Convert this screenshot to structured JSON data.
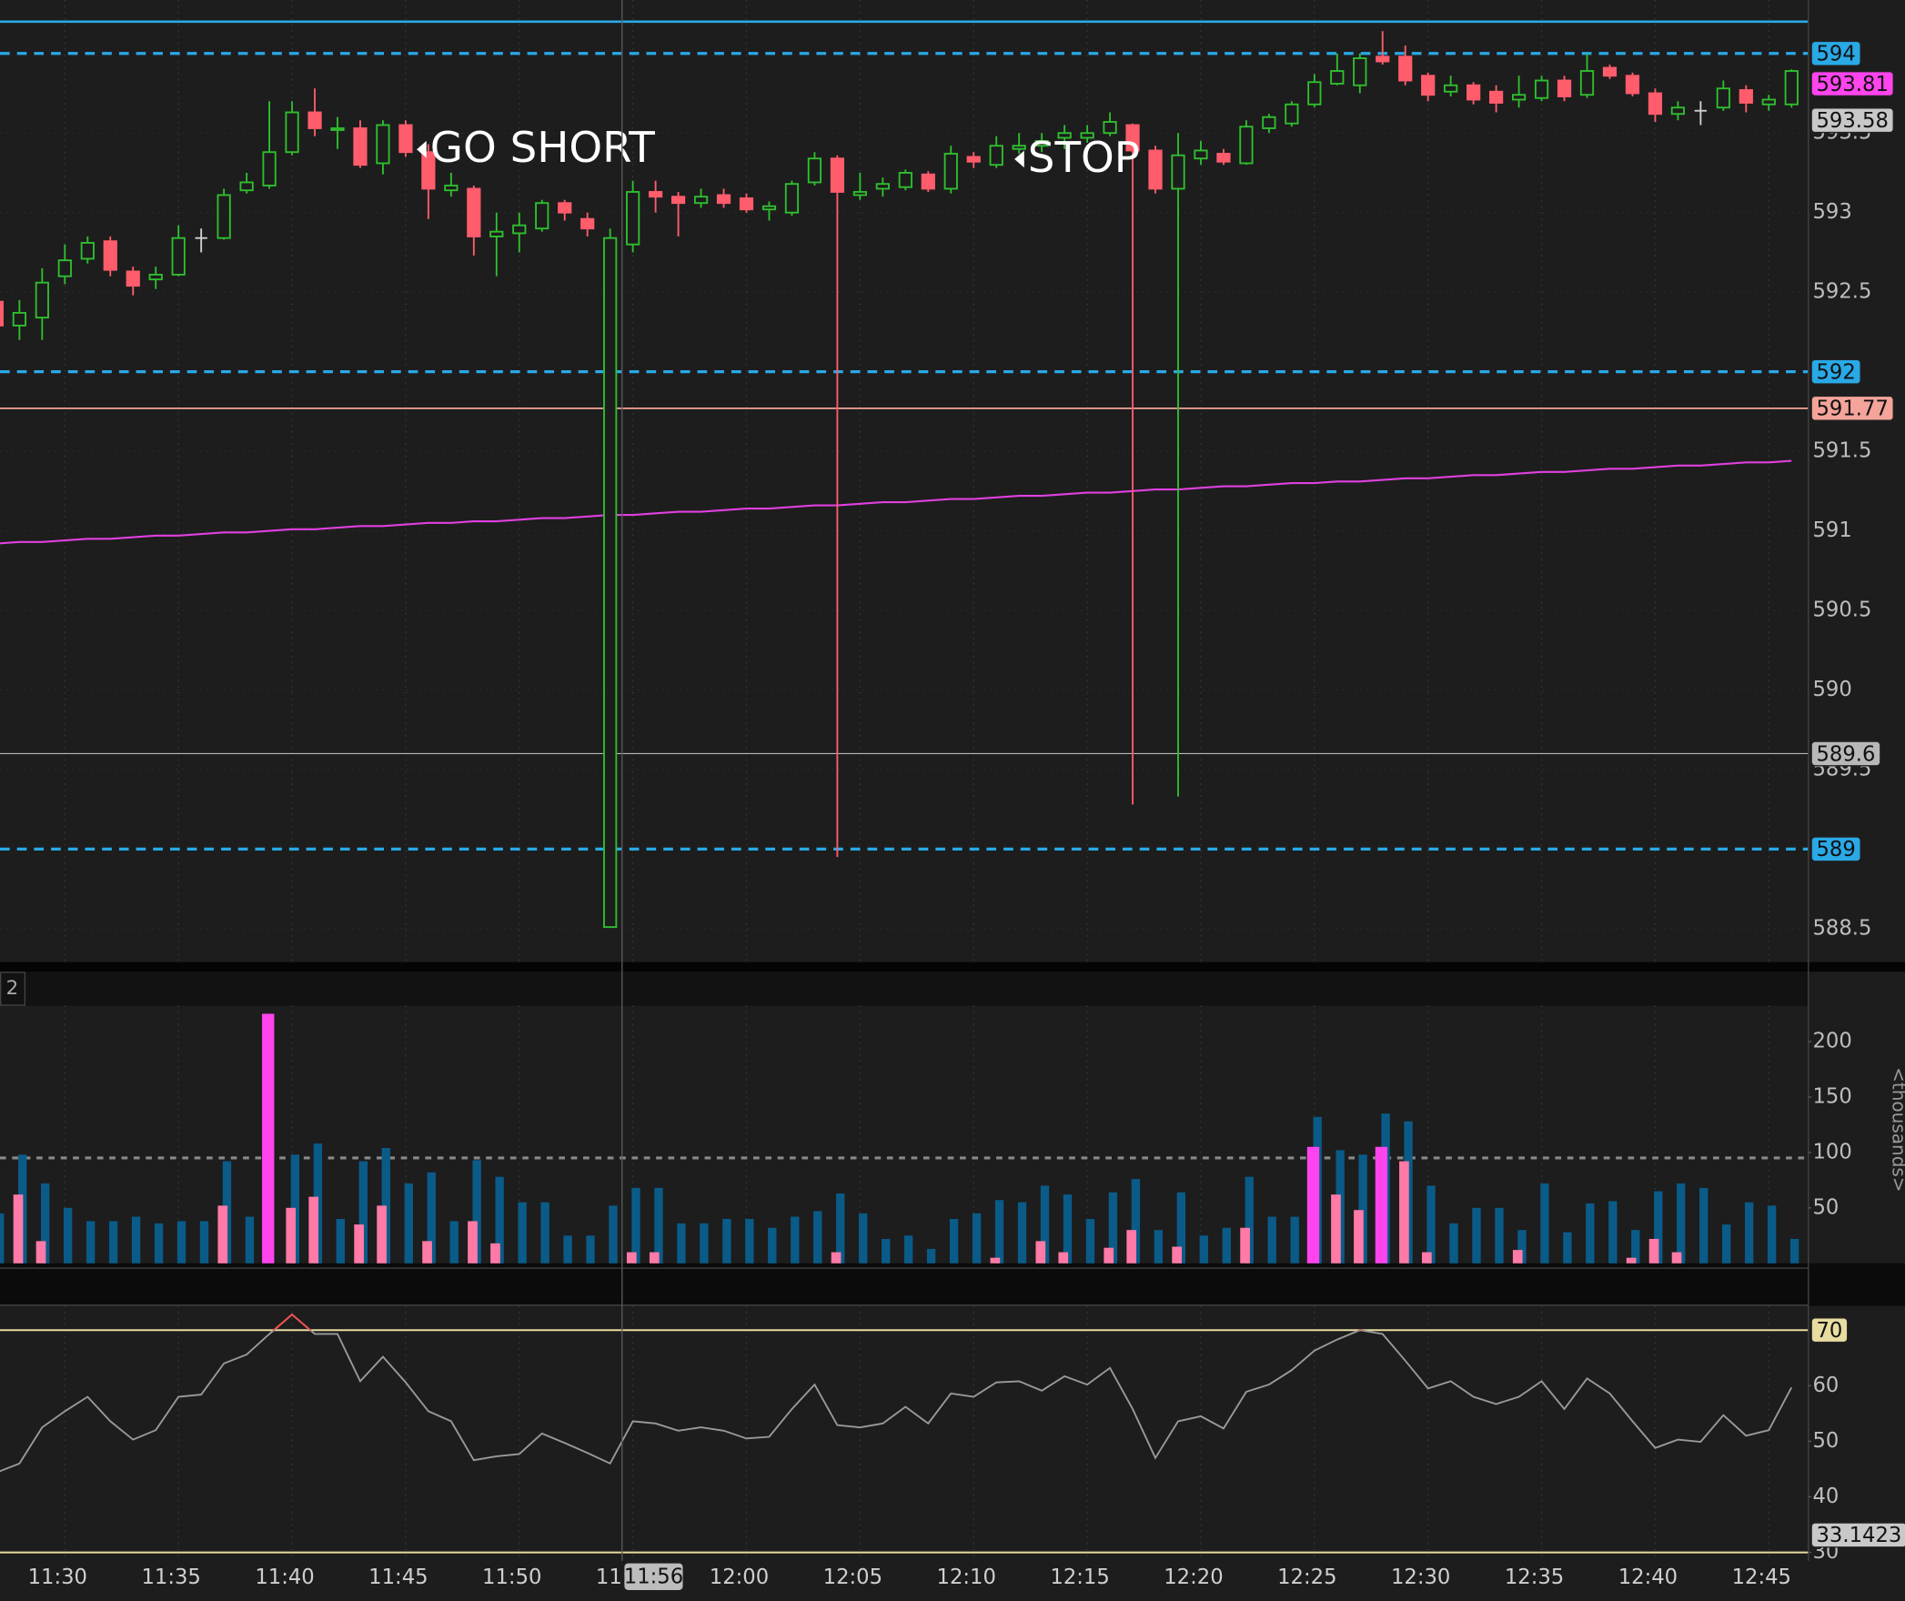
{
  "chart_data": [
    {
      "type": "candlestick",
      "categories": [
        null,
        null,
        null,
        "11:30",
        null,
        null,
        null,
        null,
        "11:35",
        null,
        null,
        null,
        null,
        "11:40",
        null,
        null,
        null,
        null,
        "11:45",
        null,
        null,
        null,
        null,
        "11:50",
        null,
        null,
        null,
        null,
        "11:55",
        null,
        null,
        null,
        null,
        "12:00",
        null,
        null,
        null,
        null,
        "12:05",
        null,
        null,
        null,
        null,
        "12:10",
        null,
        null,
        null,
        null,
        "12:15",
        null,
        null,
        null,
        null,
        "12:20",
        null,
        null,
        null,
        null,
        "12:25",
        null,
        null,
        null,
        null,
        "12:30",
        null,
        null,
        null,
        null,
        "12:35",
        null,
        null,
        null,
        null,
        "12:40",
        null,
        null,
        null,
        null,
        "12:45",
        null
      ],
      "open": [
        592.44,
        592.29,
        592.34,
        592.6,
        592.71,
        592.82,
        592.63,
        592.58,
        592.61,
        592.84,
        592.84,
        593.14,
        593.17,
        593.38,
        593.63,
        593.52,
        593.53,
        593.31,
        593.55,
        593.38,
        593.14,
        593.15,
        592.85,
        592.87,
        592.9,
        593.06,
        592.96,
        588.51,
        592.8,
        593.13,
        593.1,
        593.06,
        593.11,
        593.09,
        593.02,
        593.0,
        593.19,
        593.34,
        593.11,
        593.15,
        593.16,
        593.24,
        593.15,
        593.35,
        593.3,
        593.4,
        593.42,
        593.47,
        593.47,
        593.5,
        593.55,
        593.39,
        593.15,
        593.34,
        593.37,
        593.31,
        593.53,
        593.56,
        593.68,
        593.81,
        593.8,
        593.98,
        593.98,
        593.86,
        593.76,
        593.8,
        593.76,
        593.71,
        593.72,
        593.83,
        593.74,
        593.91,
        593.86,
        593.75,
        593.62,
        593.64,
        593.66,
        593.77,
        593.68,
        593.68
      ],
      "high": [
        592.5,
        592.45,
        592.65,
        592.8,
        592.85,
        592.85,
        592.66,
        592.66,
        592.92,
        592.9,
        593.15,
        593.25,
        593.7,
        593.7,
        593.78,
        593.6,
        593.58,
        593.58,
        593.58,
        593.43,
        593.25,
        593.17,
        593.0,
        593.0,
        593.08,
        593.08,
        593.0,
        592.9,
        593.2,
        593.2,
        593.13,
        593.15,
        593.15,
        593.12,
        593.07,
        593.2,
        593.38,
        593.36,
        593.25,
        593.22,
        593.27,
        593.26,
        593.42,
        593.38,
        593.48,
        593.5,
        593.5,
        593.55,
        593.55,
        593.63,
        593.56,
        593.42,
        593.5,
        593.45,
        593.4,
        593.58,
        593.62,
        593.7,
        593.87,
        594.0,
        594.0,
        594.14,
        594.05,
        593.88,
        593.86,
        593.82,
        593.8,
        593.86,
        593.86,
        593.86,
        594.0,
        593.93,
        593.88,
        593.78,
        593.7,
        593.7,
        593.83,
        593.8,
        593.74,
        593.9
      ],
      "low": [
        592.25,
        592.2,
        592.2,
        592.55,
        592.68,
        592.6,
        592.48,
        592.52,
        592.6,
        592.75,
        592.83,
        593.12,
        593.15,
        593.36,
        593.48,
        593.4,
        593.28,
        593.24,
        593.35,
        592.96,
        593.1,
        592.73,
        592.6,
        592.75,
        592.88,
        592.95,
        592.85,
        588.51,
        592.75,
        593.0,
        592.85,
        593.03,
        593.03,
        593.0,
        592.95,
        592.98,
        593.17,
        588.95,
        593.08,
        593.1,
        593.14,
        593.13,
        593.12,
        593.28,
        593.28,
        593.37,
        593.38,
        593.4,
        593.44,
        593.48,
        589.28,
        593.12,
        589.33,
        593.3,
        593.3,
        593.3,
        593.5,
        593.54,
        593.66,
        593.8,
        593.75,
        593.93,
        593.8,
        593.7,
        593.73,
        593.68,
        593.63,
        593.66,
        593.7,
        593.7,
        593.72,
        593.84,
        593.73,
        593.57,
        593.58,
        593.55,
        593.64,
        593.63,
        593.64,
        593.66
      ],
      "close": [
        592.29,
        592.37,
        592.56,
        592.7,
        592.81,
        592.64,
        592.54,
        592.61,
        592.84,
        592.84,
        593.11,
        593.19,
        593.38,
        593.63,
        593.53,
        593.53,
        593.3,
        593.55,
        593.38,
        593.15,
        593.17,
        592.85,
        592.88,
        592.92,
        593.06,
        593.0,
        592.9,
        592.84,
        593.13,
        593.1,
        593.06,
        593.1,
        593.06,
        593.02,
        593.04,
        593.18,
        593.34,
        593.13,
        593.13,
        593.18,
        593.25,
        593.15,
        593.37,
        593.32,
        593.42,
        593.42,
        593.45,
        593.5,
        593.5,
        593.57,
        593.39,
        593.15,
        593.36,
        593.39,
        593.32,
        593.54,
        593.6,
        593.68,
        593.82,
        593.89,
        593.97,
        593.95,
        593.83,
        593.74,
        593.8,
        593.71,
        593.69,
        593.74,
        593.83,
        593.73,
        593.89,
        593.86,
        593.75,
        593.62,
        593.66,
        593.64,
        593.78,
        593.69,
        593.71,
        593.89
      ],
      "up_color": "#2fbf2f",
      "down_color": "#ff5c6c",
      "doji_color": "#d0d0d0",
      "overlay": {
        "color": "#e040e0",
        "values": [
          590.92,
          590.93,
          590.93,
          590.94,
          590.95,
          590.95,
          590.96,
          590.97,
          590.97,
          590.98,
          590.99,
          590.99,
          591.0,
          591.01,
          591.01,
          591.02,
          591.03,
          591.03,
          591.04,
          591.05,
          591.05,
          591.06,
          591.06,
          591.07,
          591.08,
          591.08,
          591.09,
          591.1,
          591.1,
          591.11,
          591.12,
          591.12,
          591.13,
          591.14,
          591.14,
          591.15,
          591.16,
          591.16,
          591.17,
          591.18,
          591.18,
          591.19,
          591.2,
          591.2,
          591.21,
          591.22,
          591.22,
          591.23,
          591.24,
          591.24,
          591.25,
          591.26,
          591.26,
          591.27,
          591.28,
          591.28,
          591.29,
          591.3,
          591.3,
          591.31,
          591.31,
          591.32,
          591.33,
          591.33,
          591.34,
          591.35,
          591.35,
          591.36,
          591.37,
          591.37,
          591.38,
          591.39,
          591.39,
          591.4,
          591.41,
          591.41,
          591.42,
          591.43,
          591.43,
          591.44
        ]
      },
      "ylim": [
        588.29,
        594.336
      ],
      "yticks": [
        588.5,
        589.5,
        590,
        590.5,
        591,
        591.5,
        592.5,
        593,
        593.5
      ],
      "grid": true,
      "levels": [
        {
          "value": 594.2,
          "color": "#29a9e6",
          "line": "solid"
        },
        {
          "value": 594,
          "color": "#29a9e6",
          "line": "dashed",
          "marker": true
        },
        {
          "value": 592,
          "color": "#29a9e6",
          "line": "dashed",
          "marker": true
        },
        {
          "value": 589,
          "color": "#29a9e6",
          "line": "dashed",
          "marker": true
        },
        {
          "value": 591.77,
          "color": "#f4a49a",
          "line": "solid",
          "marker": true
        },
        {
          "value": 589.6,
          "color": "#b8b8b8",
          "line": "thin",
          "marker": true
        },
        {
          "value": 593.81,
          "color": "#ff44ee",
          "marker": true
        },
        {
          "value": 593.58,
          "color": "#c8c8c8",
          "marker": true
        }
      ],
      "annotations": [
        {
          "text": "GO SHORT"
        },
        {
          "text": "STOP"
        }
      ],
      "cursor_label": "11:56"
    },
    {
      "type": "bar",
      "panel_label": "2",
      "axis_label": "<thousands>",
      "series": [
        {
          "color": "#0a5b88",
          "values": [
            45,
            98,
            72,
            50,
            38,
            38,
            42,
            36,
            38,
            38,
            92,
            42,
            null,
            98,
            108,
            40,
            92,
            104,
            72,
            82,
            38,
            93,
            78,
            55,
            55,
            25,
            25,
            52,
            68,
            68,
            36,
            36,
            40,
            40,
            32,
            42,
            47,
            63,
            45,
            22,
            25,
            13,
            40,
            45,
            57,
            55,
            70,
            62,
            40,
            64,
            76,
            30,
            64,
            25,
            32,
            78,
            42,
            42,
            132,
            102,
            98,
            135,
            128,
            70,
            36,
            50,
            50,
            30,
            72,
            28,
            54,
            56,
            30,
            65,
            72,
            68,
            35,
            55,
            52,
            22
          ]
        },
        {
          "color": "#ff7aa6",
          "values": [
            null,
            62,
            20,
            null,
            null,
            null,
            null,
            null,
            null,
            null,
            52,
            null,
            null,
            50,
            60,
            null,
            35,
            52,
            null,
            20,
            null,
            38,
            18,
            null,
            null,
            null,
            null,
            null,
            10,
            10,
            null,
            null,
            null,
            null,
            null,
            null,
            null,
            10,
            null,
            null,
            null,
            null,
            null,
            null,
            5,
            null,
            20,
            10,
            null,
            14,
            30,
            null,
            15,
            null,
            null,
            32,
            null,
            null,
            null,
            62,
            48,
            null,
            92,
            10,
            null,
            null,
            null,
            12,
            null,
            null,
            null,
            null,
            5,
            22,
            10,
            null,
            null,
            null,
            null,
            null
          ]
        },
        {
          "color": "#ff44ee",
          "values": [
            null,
            null,
            null,
            null,
            null,
            null,
            null,
            null,
            null,
            null,
            null,
            null,
            225,
            null,
            null,
            null,
            null,
            null,
            null,
            null,
            null,
            null,
            null,
            null,
            null,
            null,
            null,
            null,
            null,
            null,
            null,
            null,
            null,
            null,
            null,
            null,
            null,
            null,
            null,
            null,
            null,
            null,
            null,
            null,
            null,
            null,
            null,
            null,
            null,
            null,
            null,
            null,
            null,
            null,
            null,
            null,
            null,
            null,
            105,
            null,
            null,
            105,
            null,
            null,
            null,
            null,
            null,
            null,
            null,
            null,
            null,
            null,
            null,
            null,
            null,
            null,
            null,
            null,
            null,
            null
          ]
        }
      ],
      "ylim": [
        0,
        232.2
      ],
      "yticks": [
        50,
        100,
        150,
        200
      ],
      "levels": [
        {
          "value": 95,
          "color": "#8a8a8a",
          "line": "dashed"
        }
      ]
    },
    {
      "type": "line",
      "series": [
        {
          "color": "#9a9a9a",
          "values": [
            44.4,
            46,
            52.5,
            55.4,
            58,
            53.6,
            50.3,
            52,
            58,
            58.4,
            64,
            65.6,
            69.3,
            72.8,
            69.3,
            69.3,
            60.8,
            65.2,
            60.6,
            55.4,
            53.6,
            46.6,
            47.3,
            47.7,
            51.4,
            49.7,
            47.9,
            46,
            53.6,
            53.2,
            51.9,
            52.5,
            51.9,
            50.5,
            50.8,
            55.8,
            60.2,
            52.9,
            52.5,
            53.2,
            56.2,
            53.2,
            58.6,
            58,
            60.6,
            60.8,
            59.1,
            61.7,
            60.2,
            63.2,
            55.8,
            47,
            53.6,
            54.5,
            52.3,
            58.9,
            60.2,
            62.8,
            66.3,
            68.3,
            70,
            69.3,
            64.5,
            59.5,
            60.8,
            58,
            56.7,
            58,
            60.8,
            55.8,
            61.3,
            58.6,
            53.6,
            48.8,
            50.3,
            49.9,
            54.7,
            51,
            52,
            59.7
          ]
        }
      ],
      "above_color": "#ff4b4b",
      "ylim": [
        28.47,
        74.37
      ],
      "yticks": [
        30,
        40,
        50,
        60
      ],
      "levels": [
        {
          "value": 70,
          "color": "#e8dca0",
          "line": "solid",
          "marker": true
        },
        {
          "value": 30,
          "color": "#e8dca0",
          "line": "solid"
        },
        {
          "value": 33.1423,
          "color": "#c8c8c8",
          "marker": true
        }
      ]
    }
  ]
}
